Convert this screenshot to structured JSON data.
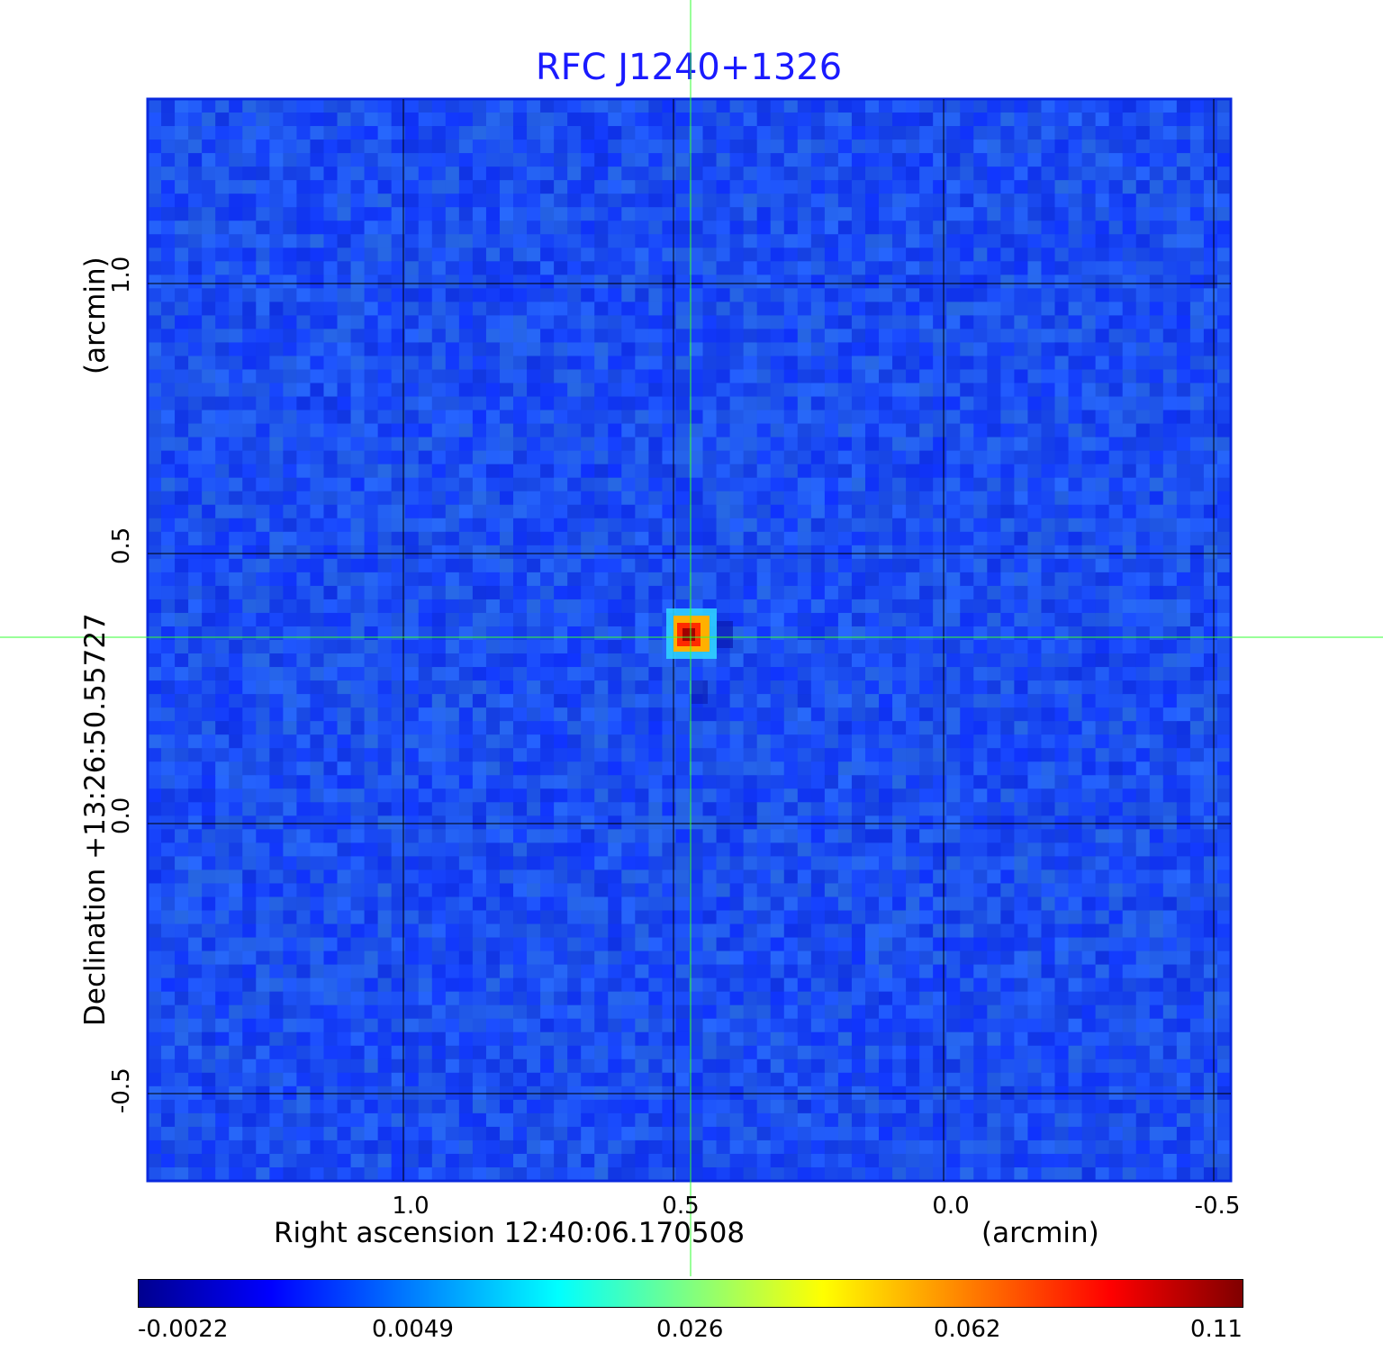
{
  "title": "RFC J1240+1326",
  "title_color": "#1a1aff",
  "x_axis": {
    "label": "Right ascension  12:40:06.170508",
    "unit": "(arcmin)",
    "ticks": [
      "1.0",
      "0.5",
      "0.0",
      "-0.5"
    ]
  },
  "y_axis": {
    "label": "Declination  +13:26:50.55727",
    "unit": "(arcmin)",
    "ticks": [
      "1.0",
      "0.5",
      "0.0",
      "-0.5"
    ]
  },
  "colorbar": {
    "ticks": [
      "-0.0022",
      "0.0049",
      "0.026",
      "0.062",
      "0.11"
    ],
    "colormap": "jet"
  },
  "colors": {
    "background_field": "#1a4aff",
    "grid": "#000000",
    "crosshair": "#33ff33"
  },
  "chart_data": {
    "type": "heatmap",
    "title": "RFC J1240+1326",
    "xlabel": "Right ascension  12:40:06.170508 (arcmin)",
    "ylabel": "Declination  +13:26:50.55727 (arcmin)",
    "x_ticks": [
      1.0,
      0.5,
      0.0,
      -0.5
    ],
    "y_ticks": [
      1.0,
      0.5,
      0.0,
      -0.5
    ],
    "colorbar_ticks": [
      -0.0022,
      0.0049,
      0.026,
      0.062,
      0.11
    ],
    "colorbar_range": [
      -0.0022,
      0.11
    ],
    "grid": true,
    "source_peak": {
      "x_arcmin": 0.5,
      "y_arcmin": 0.34,
      "value": 0.11
    }
  }
}
